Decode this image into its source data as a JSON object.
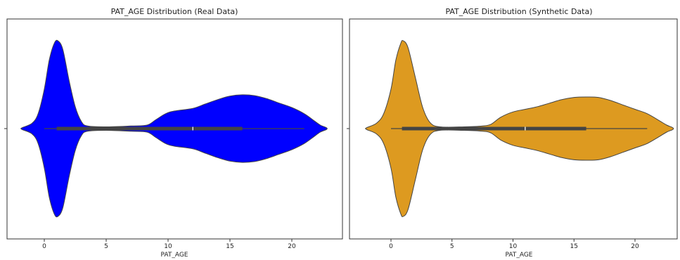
{
  "chart_data": [
    {
      "type": "violin",
      "title": "PAT_AGE Distribution (Real Data)",
      "xlabel": "PAT_AGE",
      "ylabel": "",
      "xlim": [
        -2,
        23
      ],
      "xticks": [
        0,
        5,
        10,
        15,
        20
      ],
      "fill": "#0000ff",
      "stroke": "#444444",
      "density": [
        [
          -1.8,
          0.01
        ],
        [
          -1.0,
          0.06
        ],
        [
          -0.5,
          0.17
        ],
        [
          0.0,
          0.45
        ],
        [
          0.4,
          0.78
        ],
        [
          0.8,
          0.97
        ],
        [
          1.1,
          1.0
        ],
        [
          1.5,
          0.9
        ],
        [
          2.0,
          0.55
        ],
        [
          2.5,
          0.25
        ],
        [
          3.0,
          0.08
        ],
        [
          3.5,
          0.03
        ],
        [
          5.0,
          0.02
        ],
        [
          7.0,
          0.03
        ],
        [
          8.3,
          0.04
        ],
        [
          9.0,
          0.1
        ],
        [
          9.8,
          0.17
        ],
        [
          10.5,
          0.2
        ],
        [
          12.0,
          0.23
        ],
        [
          13.0,
          0.28
        ],
        [
          14.0,
          0.33
        ],
        [
          15.0,
          0.37
        ],
        [
          16.0,
          0.385
        ],
        [
          17.0,
          0.375
        ],
        [
          18.0,
          0.34
        ],
        [
          19.0,
          0.29
        ],
        [
          20.0,
          0.24
        ],
        [
          21.0,
          0.17
        ],
        [
          21.8,
          0.09
        ],
        [
          22.3,
          0.04
        ],
        [
          22.8,
          0.01
        ]
      ],
      "box": {
        "whisker_low": 0.0,
        "q1": 1.0,
        "median": 12.0,
        "q3": 16.0,
        "whisker_high": 21.0
      }
    },
    {
      "type": "violin",
      "title": "PAT_AGE Distribution (Synthetic Data)",
      "xlabel": "PAT_AGE",
      "ylabel": "",
      "xlim": [
        -2,
        23
      ],
      "xticks": [
        0,
        5,
        10,
        15,
        20
      ],
      "fill": "#dd9a20",
      "stroke": "#444444",
      "density": [
        [
          -2.0,
          0.01
        ],
        [
          -1.2,
          0.06
        ],
        [
          -0.6,
          0.17
        ],
        [
          0.0,
          0.45
        ],
        [
          0.4,
          0.78
        ],
        [
          0.8,
          0.97
        ],
        [
          1.0,
          1.0
        ],
        [
          1.4,
          0.92
        ],
        [
          2.0,
          0.58
        ],
        [
          2.6,
          0.24
        ],
        [
          3.2,
          0.07
        ],
        [
          4.0,
          0.02
        ],
        [
          6.0,
          0.02
        ],
        [
          7.5,
          0.03
        ],
        [
          8.2,
          0.05
        ],
        [
          9.0,
          0.13
        ],
        [
          10.0,
          0.19
        ],
        [
          11.0,
          0.22
        ],
        [
          12.0,
          0.25
        ],
        [
          13.0,
          0.29
        ],
        [
          14.0,
          0.33
        ],
        [
          15.0,
          0.355
        ],
        [
          16.0,
          0.36
        ],
        [
          17.0,
          0.355
        ],
        [
          18.0,
          0.32
        ],
        [
          19.0,
          0.27
        ],
        [
          20.0,
          0.22
        ],
        [
          21.0,
          0.17
        ],
        [
          22.0,
          0.09
        ],
        [
          22.6,
          0.04
        ],
        [
          23.1,
          0.01
        ]
      ],
      "box": {
        "whisker_low": 0.0,
        "q1": 0.9,
        "median": 11.0,
        "q3": 16.0,
        "whisker_high": 21.0
      }
    }
  ]
}
